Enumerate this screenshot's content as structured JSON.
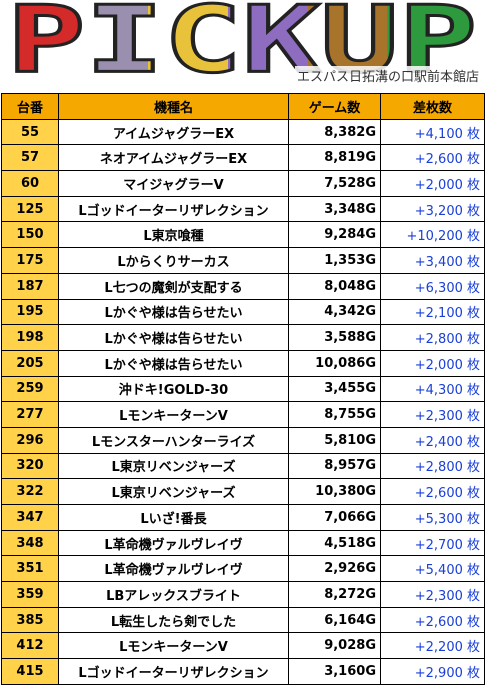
{
  "header": {
    "title": "PICKUP",
    "store": "エスパス日拓溝の口駅前本館店"
  },
  "table": {
    "columns": [
      "台番",
      "機種名",
      "ゲーム数",
      "差枚数"
    ],
    "rows": [
      [
        "55",
        "アイムジャグラーEX",
        "8,382G",
        "+4,100 枚"
      ],
      [
        "57",
        "ネオアイムジャグラーEX",
        "8,819G",
        "+2,600 枚"
      ],
      [
        "60",
        "マイジャグラーV",
        "7,528G",
        "+2,000 枚"
      ],
      [
        "125",
        "Lゴッドイーターリザレクション",
        "3,348G",
        "+3,200 枚"
      ],
      [
        "150",
        "L東京喰種",
        "9,284G",
        "+10,200 枚"
      ],
      [
        "175",
        "Lからくりサーカス",
        "1,353G",
        "+3,400 枚"
      ],
      [
        "187",
        "L七つの魔剣が支配する",
        "8,048G",
        "+6,300 枚"
      ],
      [
        "195",
        "Lかぐや様は告らせたい",
        "4,342G",
        "+2,100 枚"
      ],
      [
        "198",
        "Lかぐや様は告らせたい",
        "3,588G",
        "+2,800 枚"
      ],
      [
        "205",
        "Lかぐや様は告らせたい",
        "10,086G",
        "+2,000 枚"
      ],
      [
        "259",
        "沖ドキ!GOLD-30",
        "3,455G",
        "+4,300 枚"
      ],
      [
        "277",
        "LモンキーターンV",
        "8,755G",
        "+2,300 枚"
      ],
      [
        "296",
        "Lモンスターハンターライズ",
        "5,810G",
        "+2,400 枚"
      ],
      [
        "320",
        "L東京リベンジャーズ",
        "8,957G",
        "+2,800 枚"
      ],
      [
        "322",
        "L東京リベンジャーズ",
        "10,380G",
        "+2,600 枚"
      ],
      [
        "347",
        "Lいざ!番長",
        "7,066G",
        "+5,300 枚"
      ],
      [
        "348",
        "L革命機ヴァルヴレイヴ",
        "4,518G",
        "+2,700 枚"
      ],
      [
        "351",
        "L革命機ヴァルヴレイヴ",
        "2,926G",
        "+5,400 枚"
      ],
      [
        "359",
        "LBアレックスブライト",
        "8,272G",
        "+2,300 枚"
      ],
      [
        "385",
        "L転生したら剣でした",
        "6,164G",
        "+2,600 枚"
      ],
      [
        "412",
        "LモンキーターンV",
        "9,028G",
        "+2,200 枚"
      ],
      [
        "415",
        "Lゴッドイーターリザレクション",
        "3,160G",
        "+2,900 枚"
      ]
    ]
  }
}
